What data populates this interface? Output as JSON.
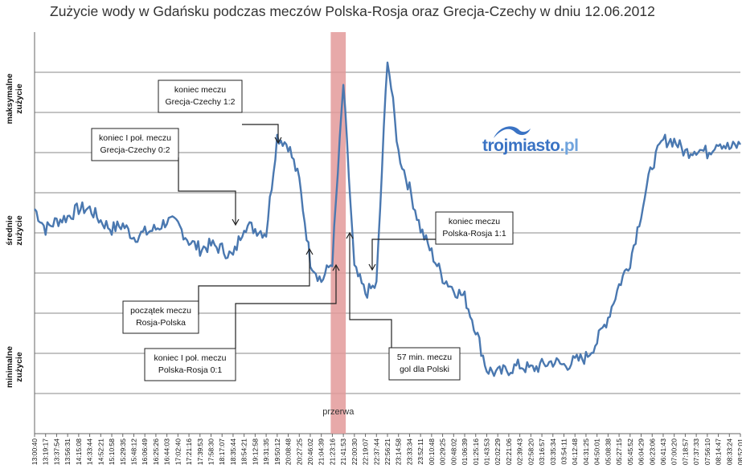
{
  "title": "Zużycie wody w Gdańsku podczas meczów Polska-Rosja oraz Grecja-Czechy w dniu 12.06.2012",
  "y_axis_labels": [
    {
      "lines": [
        "maksymalne",
        "zużycie"
      ]
    },
    {
      "lines": [
        "średnie",
        "zużycie"
      ]
    },
    {
      "lines": [
        "minimalne",
        "zużycie"
      ]
    }
  ],
  "brand": {
    "main": "trojmiasto",
    "suffix": ".pl"
  },
  "colors": {
    "line": "#4a78b0",
    "break_band": "#e39a9a",
    "grid": "#8a8a8a"
  },
  "chart_data": {
    "type": "line",
    "title": "Zużycie wody w Gdańsku podczas meczów Polska-Rosja oraz Grecja-Czechy w dniu 12.06.2012",
    "x_tick_labels": [
      "13:00:40",
      "13:19:17",
      "13:37:54",
      "13:56:31",
      "14:15:08",
      "14:33:44",
      "14:52:21",
      "15:10:58",
      "15:29:35",
      "15:48:12",
      "16:06:49",
      "16:25:26",
      "16:44:03",
      "17:02:40",
      "17:21:16",
      "17:39:53",
      "17:58:30",
      "18:17:07",
      "18:35:44",
      "18:54:21",
      "19:12:58",
      "19:31:35",
      "19:50:12",
      "20:08:48",
      "20:27:25",
      "20:46:02",
      "21:04:39",
      "21:23:16",
      "21:41:53",
      "22:00:30",
      "22:19:07",
      "22:37:44",
      "22:56:21",
      "23:14:58",
      "23:33:34",
      "23:52:11",
      "00:10:48",
      "00:29:25",
      "00:48:02",
      "01:06:39",
      "01:25:16",
      "01:43:53",
      "02:02:29",
      "02:21:06",
      "02:39:43",
      "02:58:20",
      "03:16:57",
      "03:35:34",
      "03:54:11",
      "04:12:48",
      "04:31:25",
      "04:50:01",
      "05:08:38",
      "05:27:15",
      "05:45:52",
      "06:04:29",
      "06:23:06",
      "06:41:43",
      "07:00:20",
      "07:18:57",
      "07:37:33",
      "07:56:10",
      "08:14:47",
      "08:33:24",
      "08:52:01"
    ],
    "y_scale": "qualitative (minimalne – średnie – maksymalne zużycie)",
    "ylim": [
      0,
      10
    ],
    "grid": true,
    "series": [
      {
        "values_by_tick": [
          5.6,
          5.1,
          5.3,
          5.4,
          5.6,
          5.6,
          5.3,
          5.1,
          5.2,
          4.9,
          5.0,
          5.1,
          5.3,
          5.2,
          4.8,
          4.6,
          4.7,
          4.6,
          4.4,
          5.2,
          5.1,
          5.0,
          7.4,
          7.2,
          6.3,
          4.3,
          3.8,
          4.3,
          8.7,
          4.1,
          3.5,
          3.7,
          9.4,
          7.0,
          6.1,
          5.1,
          4.5,
          3.9,
          3.6,
          3.4,
          2.6,
          1.6,
          1.5,
          1.6,
          1.7,
          1.6,
          1.7,
          1.8,
          1.7,
          1.8,
          1.9,
          2.3,
          2.9,
          3.7,
          4.3,
          5.5,
          6.7,
          7.3,
          7.3,
          7.0,
          7.1,
          7.0,
          7.3,
          7.1,
          7.2
        ]
      }
    ],
    "break_band": {
      "from_tick": "21:23:16",
      "to_tick": "21:41:53",
      "label": "przerwa"
    },
    "annotations": [
      {
        "lines": [
          "koniec meczu",
          "Grecja-Czechy 1:2"
        ]
      },
      {
        "lines": [
          "koniec I poł. meczu",
          "Grecja-Czechy 0:2"
        ]
      },
      {
        "lines": [
          "koniec meczu",
          "Polska-Rosja 1:1"
        ]
      },
      {
        "lines": [
          "początek meczu",
          "Rosja-Polska"
        ]
      },
      {
        "lines": [
          "koniec I poł. meczu",
          "Polska-Rosja 0:1"
        ]
      },
      {
        "lines": [
          "57 min. meczu",
          "gol dla Polski"
        ]
      }
    ]
  }
}
